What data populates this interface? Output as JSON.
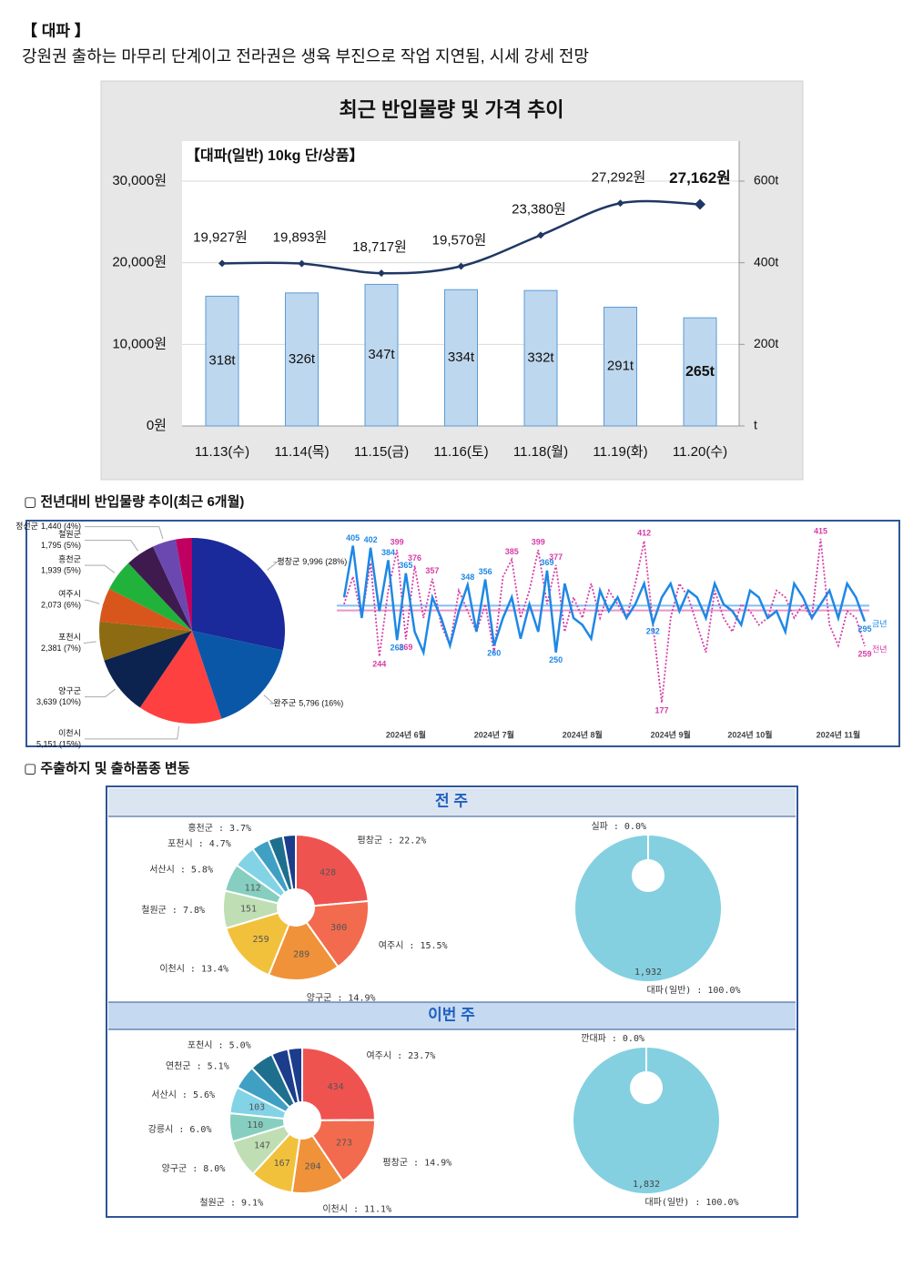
{
  "header": {
    "title": "【 대파 】",
    "subtitle": "강원권 출하는 마무리 단계이고 전라권은 생육 부진으로 작업 지연됨, 시세 강세 전망"
  },
  "sections": [
    "▢ 전년대비 반입물량 추이(최근 6개월)",
    "▢ 주출하지 및 출하품종 변동"
  ],
  "panels": [
    "전 주",
    "이번 주"
  ],
  "chart_data": [
    {
      "type": "bar_line",
      "title": "최근 반입물량 및 가격 추이",
      "subtitle": "【대파(일반) 10kg 단/상품】",
      "categories": [
        "11.13(수)",
        "11.14(목)",
        "11.15(금)",
        "11.16(토)",
        "11.18(월)",
        "11.19(화)",
        "11.20(수)"
      ],
      "series": [
        {
          "type": "bar",
          "axis": "y2",
          "color": "#bdd7ee",
          "values": [
            318,
            326,
            347,
            334,
            332,
            291,
            265
          ],
          "value_labels": [
            "318t",
            "326t",
            "347t",
            "334t",
            "332t",
            "291t",
            "265t"
          ]
        },
        {
          "type": "line",
          "axis": "y",
          "color": "#1f3864",
          "values": [
            19927,
            19893,
            18717,
            19570,
            23380,
            27292,
            27162
          ],
          "value_labels": [
            "19,927원",
            "19,893원",
            "18,717원",
            "19,570원",
            "23,380원",
            "27,292원",
            "27,162원"
          ]
        }
      ],
      "ylim": [
        0,
        30000
      ],
      "yticks": [
        {
          "value": 0,
          "label": "0원"
        },
        {
          "value": 10000,
          "label": "10,000원"
        },
        {
          "value": 20000,
          "label": "20,000원"
        },
        {
          "value": 30000,
          "label": "30,000원"
        }
      ],
      "y2lim": [
        0,
        600
      ],
      "y2ticks": [
        {
          "value": 0,
          "label": "t"
        },
        {
          "value": 200,
          "label": "200t"
        },
        {
          "value": 400,
          "label": "400t"
        },
        {
          "value": 600,
          "label": "600t"
        }
      ],
      "grid": true
    },
    {
      "type": "pie",
      "categories": [
        "평창군",
        "완주군",
        "이천시",
        "양구군",
        "포천시",
        "여주시",
        "홍천군",
        "철원군",
        "정선군",
        null
      ],
      "values": [
        9996,
        5796,
        5151,
        3639,
        2381,
        2073,
        1939,
        1795,
        1440,
        1000
      ],
      "value_labels": [
        "9,996 (28%)",
        "5,796 (16%)",
        "5,151 (15%)",
        "3,639 (10%)",
        "2,381 (7%)",
        "2,073 (6%)",
        "1,939 (5%)",
        "1,795 (5%)",
        "1,440 (4%)",
        null
      ],
      "colors": [
        "#1a2a9a",
        "#0a57a8",
        "#ff4040",
        "#0c234f",
        "#8c6b13",
        "#d8561c",
        "#21b23c",
        "#3f1a4f",
        "#6b48b0",
        "#c00060"
      ]
    },
    {
      "type": "line",
      "categories": [
        null,
        null,
        null,
        null,
        null,
        null,
        null,
        "2024년 6월",
        null,
        null,
        null,
        null,
        null,
        null,
        null,
        null,
        null,
        "2024년 7월",
        null,
        null,
        null,
        null,
        null,
        null,
        null,
        null,
        null,
        "2024년 8월",
        null,
        null,
        null,
        null,
        null,
        null,
        null,
        null,
        null,
        "2024년 9월",
        null,
        null,
        null,
        null,
        null,
        null,
        null,
        null,
        "2024년 10월",
        null,
        null,
        null,
        null,
        null,
        null,
        null,
        null,
        null,
        "2024년 11월",
        null,
        null,
        null
      ],
      "series": [
        {
          "name": "금년",
          "color": "#1e88e5",
          "average": 318,
          "values": [
            330,
            405,
            300,
            402,
            310,
            384,
            268,
            365,
            280,
            250,
            330,
            300,
            260,
            310,
            348,
            280,
            356,
            260,
            300,
            330,
            270,
            320,
            280,
            369,
            250,
            350,
            300,
            290,
            270,
            340,
            310,
            330,
            300,
            320,
            350,
            292,
            330,
            350,
            310,
            340,
            330,
            300,
            350,
            320,
            310,
            290,
            340,
            330,
            300,
            310,
            280,
            350,
            330,
            300,
            320,
            340,
            300,
            350,
            330,
            295
          ],
          "labeled_points": [
            1,
            3,
            5,
            6,
            7,
            14,
            16,
            17,
            23,
            24,
            35,
            59
          ]
        },
        {
          "name": "전년",
          "color": "#d63ca6",
          "average": 311,
          "values": [
            320,
            360,
            300,
            380,
            244,
            340,
            399,
            269,
            376,
            300,
            357,
            290,
            260,
            340,
            310,
            280,
            320,
            250,
            360,
            385,
            300,
            340,
            399,
            320,
            377,
            280,
            330,
            300,
            350,
            300,
            340,
            320,
            300,
            350,
            412,
            290,
            177,
            300,
            350,
            330,
            290,
            250,
            340,
            300,
            280,
            320,
            310,
            290,
            300,
            340,
            330,
            300,
            320,
            300,
            415,
            290,
            260,
            310,
            300,
            259
          ],
          "labeled_points": [
            4,
            6,
            7,
            8,
            10,
            19,
            22,
            24,
            34,
            36,
            54,
            59
          ]
        }
      ]
    },
    {
      "type": "donut",
      "labels": [
        "평창군 : 22.2%",
        "여주시 : 15.5%",
        "양구군 : 14.9%",
        "이천시 : 13.4%",
        "철원군 : 7.8%",
        "서산시 : 5.8%",
        "포천시 : 4.7%",
        "홍천군 : 3.7%",
        null,
        null
      ],
      "values": [
        428,
        300,
        289,
        259,
        151,
        112,
        91,
        71,
        60,
        52
      ],
      "colors": [
        "#ef5350",
        "#f26b4f",
        "#f0923a",
        "#f2c13c",
        "#bfdeb4",
        "#86cfc0",
        "#83d3e6",
        "#3fa0c4",
        "#1e6f8e",
        "#1c3d8c"
      ]
    },
    {
      "type": "donut_variety",
      "labels": [
        "실파 : 0.0%",
        "대파(일반) : 100.0%"
      ],
      "values": [
        0,
        1932
      ],
      "value_labels": [
        null,
        "1,932"
      ],
      "colors": [
        "#84d0e0",
        "#84d0e0"
      ]
    },
    {
      "type": "donut",
      "labels": [
        "여주시 : 23.7%",
        "평창군 : 14.9%",
        "이천시 : 11.1%",
        "철원군 : 9.1%",
        "양구군 : 8.0%",
        "강릉시 : 6.0%",
        "서산시 : 5.6%",
        "연천군 : 5.1%",
        "포천시 : 5.0%",
        null,
        null
      ],
      "values": [
        434,
        273,
        204,
        167,
        147,
        110,
        103,
        93,
        92,
        65,
        55
      ],
      "colors": [
        "#ef5350",
        "#f26b4f",
        "#f0923a",
        "#f2c13c",
        "#bfdeb4",
        "#86cfc0",
        "#83d3e6",
        "#3fa0c4",
        "#1e6f8e",
        "#1c3d8c",
        "#1c3d8c"
      ]
    },
    {
      "type": "donut_variety",
      "labels": [
        "깐대파 : 0.0%",
        "대파(일반) : 100.0%"
      ],
      "values": [
        0,
        1832
      ],
      "value_labels": [
        null,
        "1,832"
      ],
      "colors": [
        "#84d0e0",
        "#84d0e0"
      ]
    }
  ]
}
